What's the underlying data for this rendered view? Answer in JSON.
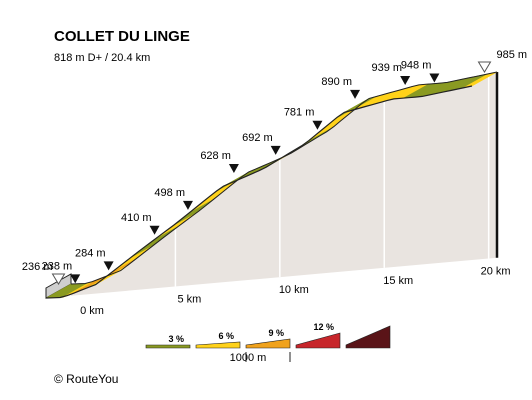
{
  "chart_data": {
    "type": "area",
    "title": "COLLET DU LINGE",
    "subtitle": "818 m D+ / 20.4 km",
    "x_unit": "km",
    "x_ticks": [
      {
        "value": 0,
        "label": "0 km"
      },
      {
        "value": 5,
        "label": "5 km"
      },
      {
        "value": 10,
        "label": "10 km"
      },
      {
        "value": 15,
        "label": "15 km"
      },
      {
        "value": 20,
        "label": "20 km"
      }
    ],
    "ylim": [
      236,
      985
    ],
    "points": [
      {
        "km": 0,
        "ele": 236,
        "label": "236 m",
        "marker": "start"
      },
      {
        "km": 0.8,
        "ele": 238,
        "label": "238 m",
        "marker": "waypoint"
      },
      {
        "km": 2.4,
        "ele": 284,
        "label": "284 m",
        "marker": "waypoint"
      },
      {
        "km": 4.6,
        "ele": 410,
        "label": "410 m",
        "marker": "waypoint"
      },
      {
        "km": 6.2,
        "ele": 498,
        "label": "498 m",
        "marker": "waypoint"
      },
      {
        "km": 8.4,
        "ele": 628,
        "label": "628 m",
        "marker": "waypoint"
      },
      {
        "km": 10.4,
        "ele": 692,
        "label": "692 m",
        "marker": "waypoint"
      },
      {
        "km": 12.4,
        "ele": 781,
        "label": "781 m",
        "marker": "waypoint"
      },
      {
        "km": 14.2,
        "ele": 890,
        "label": "890 m",
        "marker": "waypoint"
      },
      {
        "km": 16.6,
        "ele": 939,
        "label": "939 m",
        "marker": "waypoint"
      },
      {
        "km": 18.0,
        "ele": 948,
        "label": "948 m",
        "marker": "waypoint"
      },
      {
        "km": 20.4,
        "ele": 985,
        "label": "985 m",
        "marker": "end"
      }
    ],
    "segment_gradient_class": [
      1,
      1,
      2,
      3,
      3,
      2,
      2,
      3,
      2,
      2,
      1,
      1,
      1,
      2,
      2,
      1,
      1,
      2,
      2,
      2,
      1,
      1,
      1,
      1,
      1,
      1,
      2,
      2,
      1,
      1,
      1,
      2,
      2,
      2,
      1,
      1,
      2,
      2,
      2,
      2,
      2,
      2,
      1,
      1,
      1,
      1,
      1,
      1,
      1,
      2
    ],
    "legend": {
      "items": [
        {
          "label": "3 %",
          "color": "#8a9a22"
        },
        {
          "label": "6 %",
          "color": "#ffd21a"
        },
        {
          "label": "9 %",
          "color": "#f0a21c"
        },
        {
          "label": "12 %",
          "color": "#c7262b"
        },
        {
          "label": "",
          "color": "#5a1418"
        }
      ],
      "scale_label": "1000 m"
    },
    "colors": {
      "side": "#e9e4e0",
      "side_edge": "#222222",
      "divider": "#ffffff"
    }
  },
  "footer": {
    "copyright": "©  RouteYou"
  }
}
